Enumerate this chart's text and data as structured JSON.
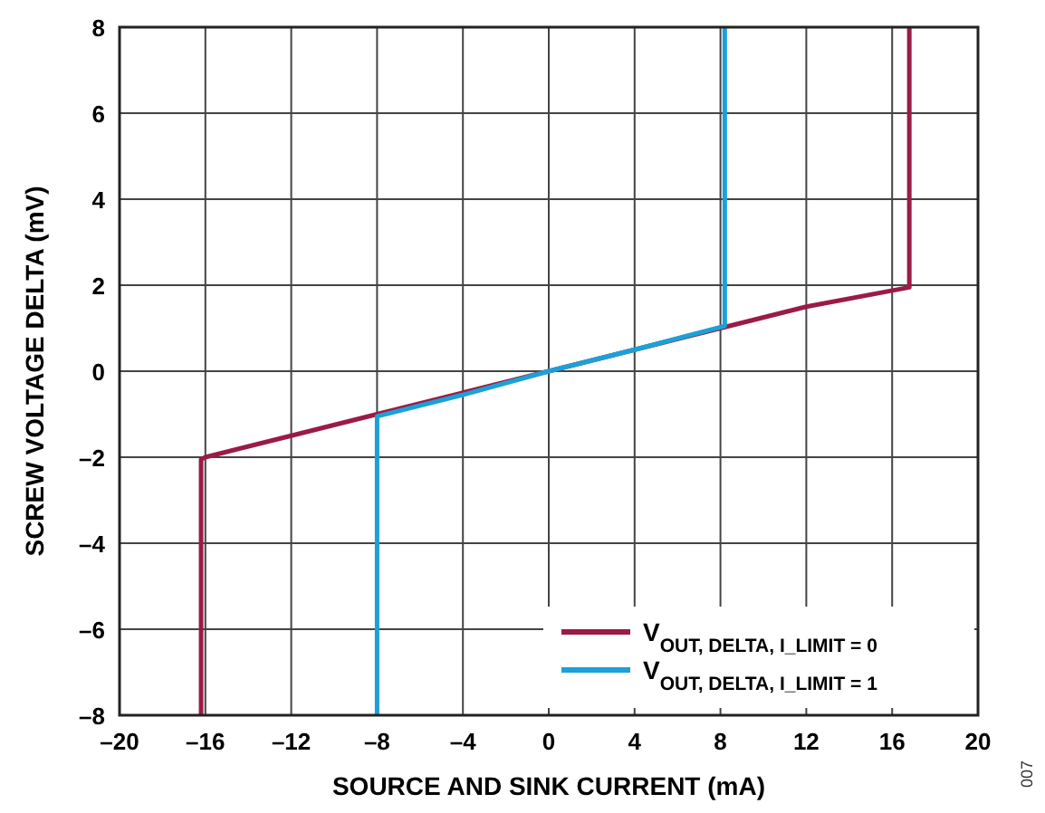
{
  "chart_data": {
    "type": "line",
    "xlabel": "SOURCE AND SINK CURRENT (mA)",
    "ylabel": "SCREW VOLTAGE DELTA (mV)",
    "annotations": [
      "007"
    ],
    "xlim": [
      -20,
      20
    ],
    "xticks": [
      {
        "value": -20,
        "label": "–20"
      },
      {
        "value": -16,
        "label": "–16"
      },
      {
        "value": -12,
        "label": "–12"
      },
      {
        "value": -8,
        "label": "–8"
      },
      {
        "value": -4,
        "label": "–4"
      },
      0,
      4,
      8,
      12,
      16,
      20
    ],
    "ylim": [
      -8,
      8
    ],
    "yticks": [
      {
        "value": -8,
        "label": "–8"
      },
      {
        "value": -6,
        "label": "–6"
      },
      {
        "value": -4,
        "label": "–4"
      },
      {
        "value": -2,
        "label": "–2"
      },
      0,
      2,
      4,
      6,
      8
    ],
    "grid": true,
    "legend": "bottom right",
    "line_style": "solid",
    "series": [
      {
        "name": "V$_{OUT, DELTA, I_LIMIT = 0}$",
        "color": "#9b1b45",
        "x": [
          -16.2,
          -16.2,
          -16,
          -12,
          -8,
          -4,
          0,
          4,
          8,
          12,
          16.8,
          16.8
        ],
        "values": [
          -8,
          -2.05,
          -2,
          -1.5,
          -1,
          -0.5,
          0,
          0.5,
          1,
          1.5,
          1.95,
          8
        ]
      },
      {
        "name": "V$_{OUT, DELTA, I_LIMIT = 1}$",
        "color": "#1ba1d8",
        "x": [
          -8,
          -8,
          -4,
          0,
          4,
          8.2,
          8.2
        ],
        "values": [
          -8,
          -1.05,
          -0.55,
          0,
          0.5,
          1.05,
          8
        ]
      }
    ]
  }
}
